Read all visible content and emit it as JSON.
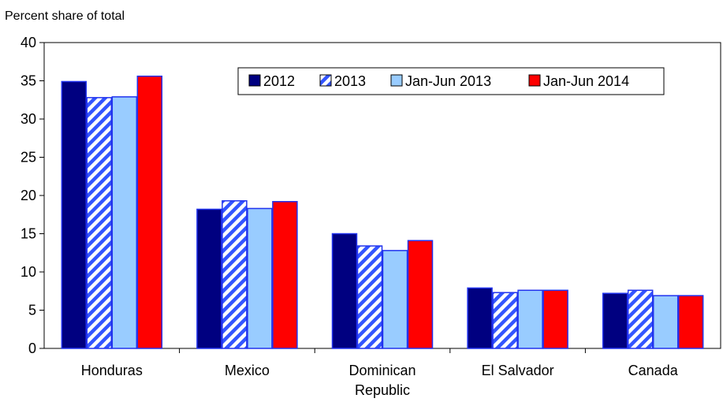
{
  "chart_data": {
    "type": "bar",
    "ylabel": "Percent share of total",
    "ylim": [
      0,
      40
    ],
    "yticks": [
      0,
      5,
      10,
      15,
      20,
      25,
      30,
      35,
      40
    ],
    "grid": false,
    "legend_position": "top-right",
    "categories": [
      "Honduras",
      "Mexico",
      "Dominican\nRepublic",
      "El Salvador",
      "Canada"
    ],
    "series": [
      {
        "name": "2012",
        "values": [
          34.9,
          18.2,
          15.0,
          7.9,
          7.2
        ],
        "color": "#000080",
        "pattern": "solid"
      },
      {
        "name": "2013",
        "values": [
          32.8,
          19.3,
          13.4,
          7.3,
          7.6
        ],
        "color": "#3355ff",
        "pattern": "hatch"
      },
      {
        "name": "Jan-Jun 2013",
        "values": [
          32.9,
          18.3,
          12.8,
          7.6,
          6.9
        ],
        "color": "#99ccff",
        "pattern": "solid"
      },
      {
        "name": "Jan-Jun 2014",
        "values": [
          35.6,
          19.2,
          14.1,
          7.6,
          6.9
        ],
        "color": "#ff0000",
        "pattern": "solid"
      }
    ]
  }
}
